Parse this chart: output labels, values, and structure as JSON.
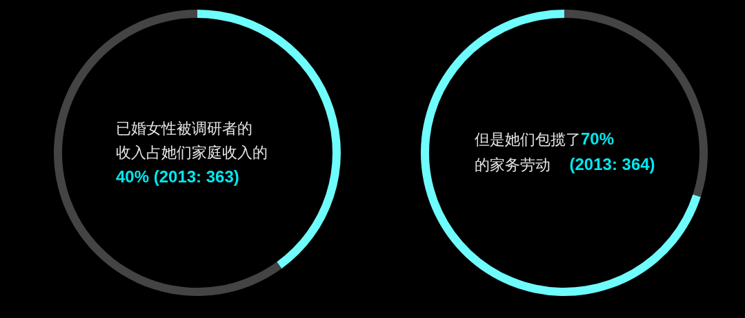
{
  "chart_data": [
    {
      "type": "donut",
      "categories": [
        null,
        null
      ],
      "values": [
        40,
        60
      ],
      "colors": [
        "#6ffcfc",
        "#444444"
      ],
      "annotations": [
        "已婚女性被调研者的",
        "收入占她们家庭收入的",
        "40% (2013: 363)"
      ]
    },
    {
      "type": "donut",
      "categories": [
        null,
        null
      ],
      "values": [
        30,
        70
      ],
      "colors": [
        "#444444",
        "#6ffcfc"
      ],
      "annotations": [
        "但是她们包揽了",
        "70%",
        "的家务劳动",
        "(2013: 364)"
      ]
    }
  ]
}
